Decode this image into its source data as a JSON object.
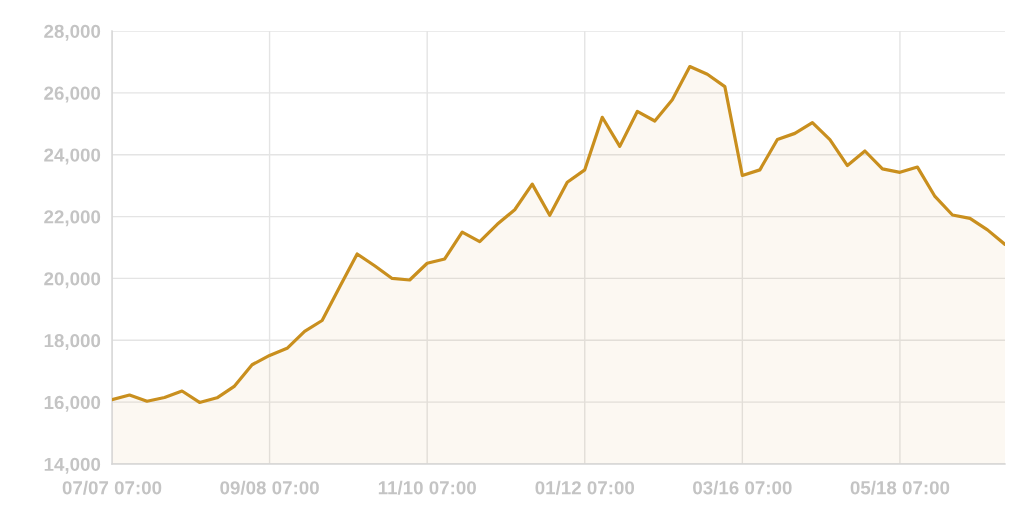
{
  "chart_data": {
    "type": "area",
    "categories": [
      "07/07 07:00",
      null,
      null,
      null,
      null,
      null,
      null,
      null,
      null,
      "09/08 07:00",
      null,
      null,
      null,
      null,
      null,
      null,
      null,
      null,
      "11/10 07:00",
      null,
      null,
      null,
      null,
      null,
      null,
      null,
      null,
      "01/12 07:00",
      null,
      null,
      null,
      null,
      null,
      null,
      null,
      null,
      "03/16 07:00",
      null,
      null,
      null,
      null,
      null,
      null,
      null,
      null,
      "05/18 07:00",
      null,
      null,
      null,
      null,
      null,
      null
    ],
    "series": [
      {
        "color": "#c98f1e",
        "values": [
          16080,
          16230,
          16030,
          16150,
          16360,
          15990,
          16140,
          16520,
          17210,
          17510,
          17740,
          18290,
          18640,
          19720,
          20790,
          20410,
          20000,
          19950,
          20490,
          20630,
          21500,
          21190,
          21750,
          22220,
          23050,
          22040,
          23110,
          23510,
          25210,
          24270,
          25400,
          25090,
          25780,
          26850,
          26600,
          26200,
          23330,
          23510,
          24490,
          24690,
          25040,
          24490,
          23650,
          24120,
          23540,
          23430,
          23600,
          22650,
          22050,
          21940,
          21570,
          21100
        ]
      }
    ],
    "ylim": [
      14000,
      28000
    ],
    "yticks": [
      {
        "value": 14000,
        "label": "14,000"
      },
      {
        "value": 16000,
        "label": "16,000"
      },
      {
        "value": 18000,
        "label": "18,000"
      },
      {
        "value": 20000,
        "label": "20,000"
      },
      {
        "value": 22000,
        "label": "22,000"
      },
      {
        "value": 24000,
        "label": "24,000"
      },
      {
        "value": 26000,
        "label": "26,000"
      },
      {
        "value": 28000,
        "label": "28,000"
      }
    ],
    "grid": true
  }
}
